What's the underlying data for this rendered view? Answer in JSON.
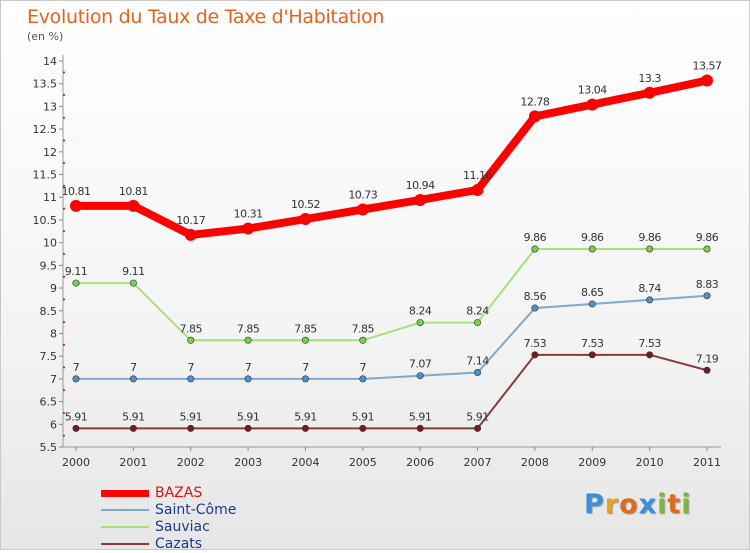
{
  "chart_data": {
    "type": "line",
    "title": "Evolution du Taux de Taxe d'Habitation",
    "subtitle": "(en %)",
    "ylim": [
      5.5,
      14
    ],
    "yticks": [
      "5.5",
      "6",
      "6.5",
      "7",
      "7.5",
      "8",
      "8.5",
      "9",
      "9.5",
      "10",
      "10.5",
      "11",
      "11.5",
      "12",
      "12.5",
      "13",
      "13.5",
      "14"
    ],
    "x": [
      "2000",
      "2001",
      "2002",
      "2003",
      "2004",
      "2005",
      "2006",
      "2007",
      "2008",
      "2009",
      "2010",
      "2011"
    ],
    "grid": false,
    "legend_position": "bottom-left",
    "series": [
      {
        "name": "BAZAS",
        "color": "#ff0000",
        "marker": "#ff0000",
        "width": 8,
        "labels": [
          "10.81",
          "10.81",
          "10.17",
          "10.31",
          "10.52",
          "10.73",
          "10.94",
          "11.16",
          "12.78",
          "13.04",
          "13.3",
          "13.57"
        ],
        "values": [
          10.81,
          10.81,
          10.17,
          10.31,
          10.52,
          10.73,
          10.94,
          11.16,
          12.78,
          13.04,
          13.3,
          13.57
        ]
      },
      {
        "name": "Saint-Côme",
        "color": "#7fa8cc",
        "marker": "#4f8fd0",
        "width": 2,
        "labels": [
          "7",
          "7",
          "7",
          "7",
          "7",
          "7",
          "7.07",
          "7.14",
          "8.56",
          "8.65",
          "8.74",
          "8.83"
        ],
        "values": [
          7,
          7,
          7,
          7,
          7,
          7,
          7.07,
          7.14,
          8.56,
          8.65,
          8.74,
          8.83
        ]
      },
      {
        "name": "Sauviac",
        "color": "#a6e07c",
        "marker": "#7ccf4a",
        "width": 2,
        "labels": [
          "9.11",
          "9.11",
          "7.85",
          "7.85",
          "7.85",
          "7.85",
          "8.24",
          "8.24",
          "9.86",
          "9.86",
          "9.86",
          "9.86"
        ],
        "values": [
          9.11,
          9.11,
          7.85,
          7.85,
          7.85,
          7.85,
          8.24,
          8.24,
          9.86,
          9.86,
          9.86,
          9.86
        ]
      },
      {
        "name": "Cazats",
        "color": "#8b3a3a",
        "marker": "#6e1f1f",
        "width": 2,
        "labels": [
          "5.91",
          "5.91",
          "5.91",
          "5.91",
          "5.91",
          "5.91",
          "5.91",
          "5.91",
          "7.53",
          "7.53",
          "7.53",
          "7.19"
        ],
        "values": [
          5.91,
          5.91,
          5.91,
          5.91,
          5.91,
          5.91,
          5.91,
          5.91,
          7.53,
          7.53,
          7.53,
          7.19
        ]
      }
    ]
  },
  "brand": {
    "letters": [
      "P",
      "r",
      "o",
      "x",
      "i",
      "t",
      "i"
    ],
    "colors": [
      "#3b8fd8",
      "#e8a020",
      "#e06a1f",
      "#3b8fd8",
      "#7ab83a",
      "#e06a1f",
      "#7ab83a"
    ]
  }
}
